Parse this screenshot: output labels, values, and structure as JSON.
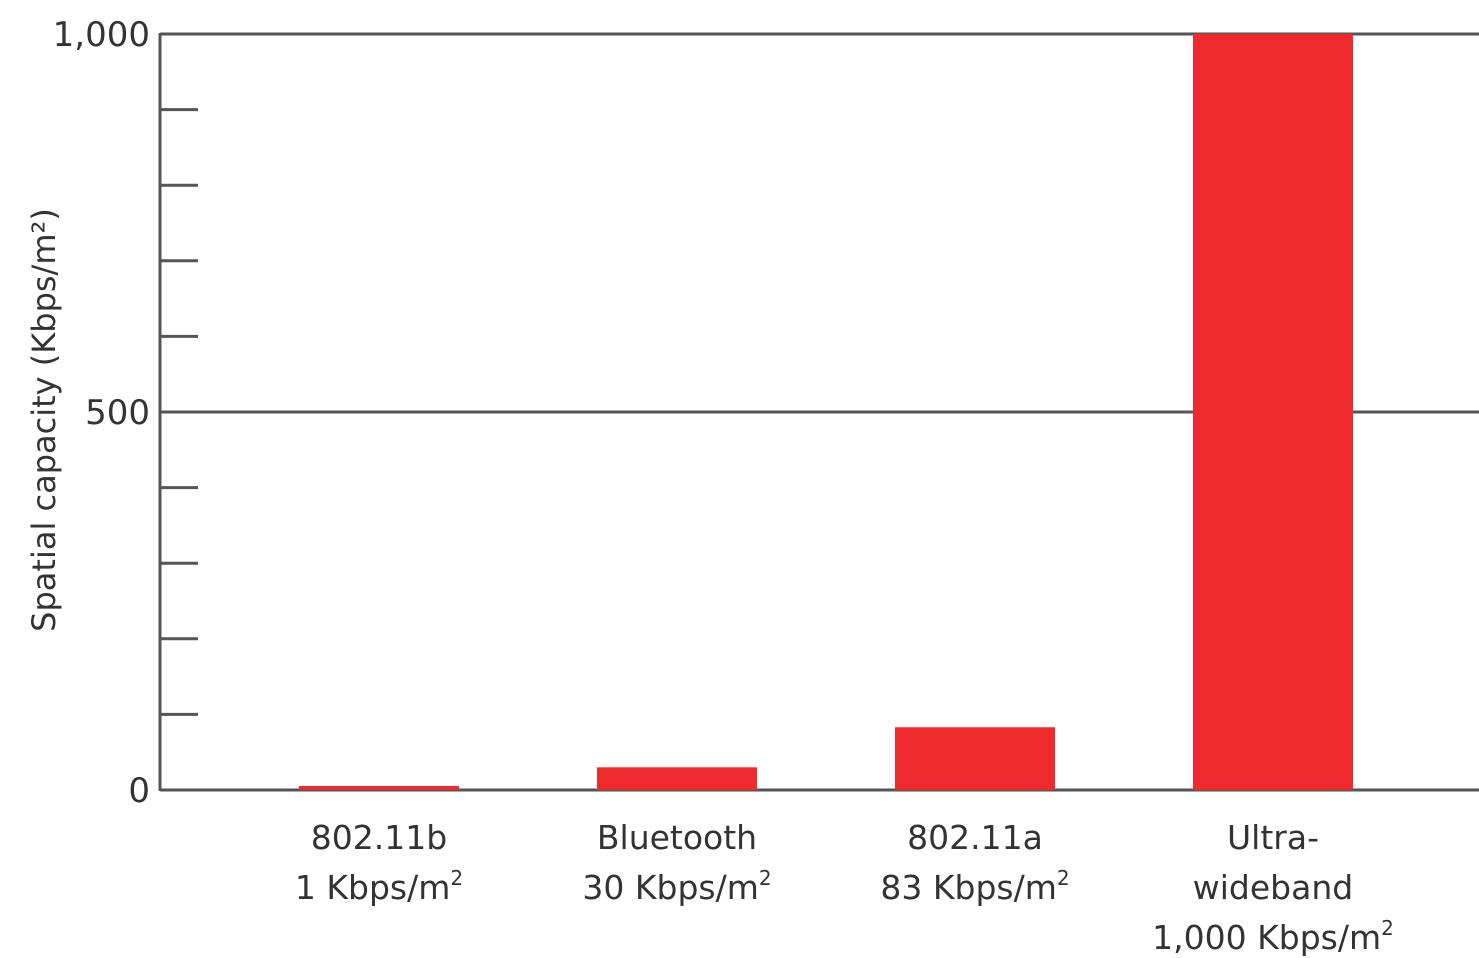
{
  "chart_data": {
    "type": "bar",
    "ylabel": "Spatial capacity (Kbps/m²)",
    "ylim": [
      0,
      1000
    ],
    "y_ticks": [
      "0",
      "500",
      "1,000"
    ],
    "y_minor_step": 100,
    "grid_values": [
      500,
      1000
    ],
    "categories": [
      {
        "name_lines": [
          "802.11b"
        ],
        "value_prefix": "1 Kbps/m",
        "value_sup": "2"
      },
      {
        "name_lines": [
          "Bluetooth"
        ],
        "value_prefix": "30 Kbps/m",
        "value_sup": "2"
      },
      {
        "name_lines": [
          "802.11a"
        ],
        "value_prefix": "83 Kbps/m",
        "value_sup": "2"
      },
      {
        "name_lines": [
          "Ultra-",
          "wideband"
        ],
        "value_prefix": "1,000 Kbps/m",
        "value_sup": "2"
      }
    ],
    "values": [
      1,
      30,
      83,
      1000
    ],
    "bar_color": "#ee2a2d",
    "axis_color": "#555555"
  }
}
